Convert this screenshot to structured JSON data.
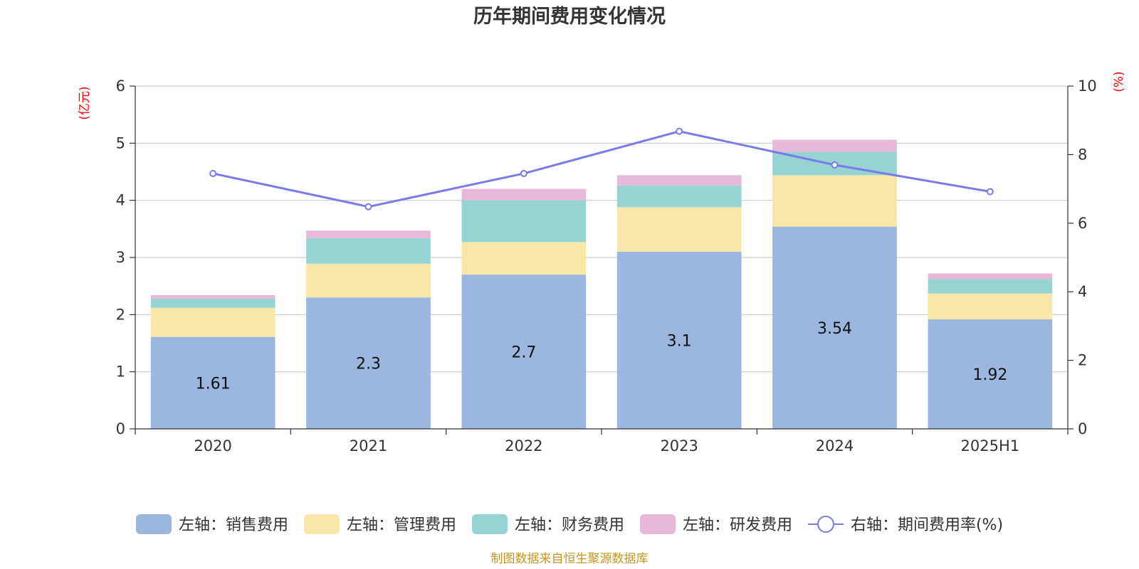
{
  "chart_data": {
    "type": "bar",
    "stacked": true,
    "title": "历年期间费用变化情况",
    "categories": [
      "2020",
      "2021",
      "2022",
      "2023",
      "2024",
      "2025H1"
    ],
    "left_axis": {
      "unit": "(亿元)",
      "ylim": [
        0,
        6
      ],
      "ticks": [
        "0",
        "1",
        "2",
        "3",
        "4",
        "5",
        "6"
      ]
    },
    "right_axis": {
      "unit": "(%)",
      "ylim": [
        0,
        10
      ],
      "ticks": [
        "0",
        "2",
        "4",
        "6",
        "8",
        "10"
      ]
    },
    "series": [
      {
        "name": "左轴：销售费用",
        "axis": "left",
        "color": "#9bb7e0",
        "values": [
          1.61,
          2.3,
          2.7,
          3.1,
          3.54,
          1.92
        ],
        "labels": [
          "1.61",
          "2.3",
          "2.7",
          "3.1",
          "3.54",
          "1.92"
        ]
      },
      {
        "name": "左轴：管理费用",
        "axis": "left",
        "color": "#f8e7a8",
        "values": [
          0.51,
          0.59,
          0.57,
          0.78,
          0.9,
          0.45
        ]
      },
      {
        "name": "左轴：财务费用",
        "axis": "left",
        "color": "#96d4d4",
        "values": [
          0.16,
          0.45,
          0.73,
          0.38,
          0.41,
          0.25
        ]
      },
      {
        "name": "左轴：研发费用",
        "axis": "left",
        "color": "#e8b8d8",
        "values": [
          0.06,
          0.13,
          0.2,
          0.18,
          0.21,
          0.1
        ]
      },
      {
        "name": "右轴：期间费用率(%)",
        "axis": "right",
        "type": "line",
        "color": "#7a7ae8",
        "values": [
          7.45,
          6.48,
          7.45,
          8.68,
          7.7,
          6.92
        ]
      }
    ],
    "grid": true,
    "legend_position": "bottom"
  },
  "source_text": "制图数据来自恒生聚源数据库"
}
